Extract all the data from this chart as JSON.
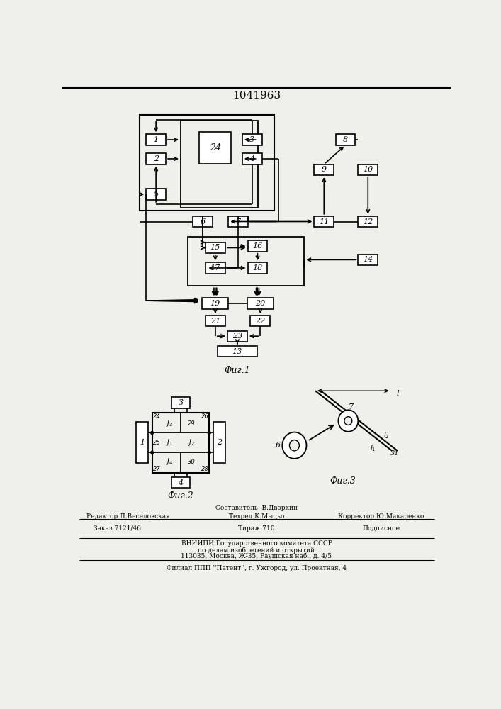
{
  "title": "1041963",
  "bg_color": "#f0f0eb",
  "fig1_label": "Фиг.1",
  "fig2_label": "Фиг.2",
  "fig3_label": "Фиг.3",
  "footer": {
    "line1_left": "Редактор Л.Веселовская",
    "line1_center": "Составитель  В.Дворкин\nТехред К.Мыцьо",
    "line1_right": "Корректор Ю.Макаренко",
    "line2_left": "Заказ 7121/46",
    "line2_center": "Тираж 710",
    "line2_right": "Подписное",
    "line3": "ВНИИПИ Государственного комитета СССР",
    "line4": "по делам изобретений и открытий",
    "line5": "113035, Москва, Ж-35, Раушская наб., д. 4/5",
    "line6": "Филиал ППП ''Патент'', г. Ужгород, ул. Проектная, 4"
  }
}
